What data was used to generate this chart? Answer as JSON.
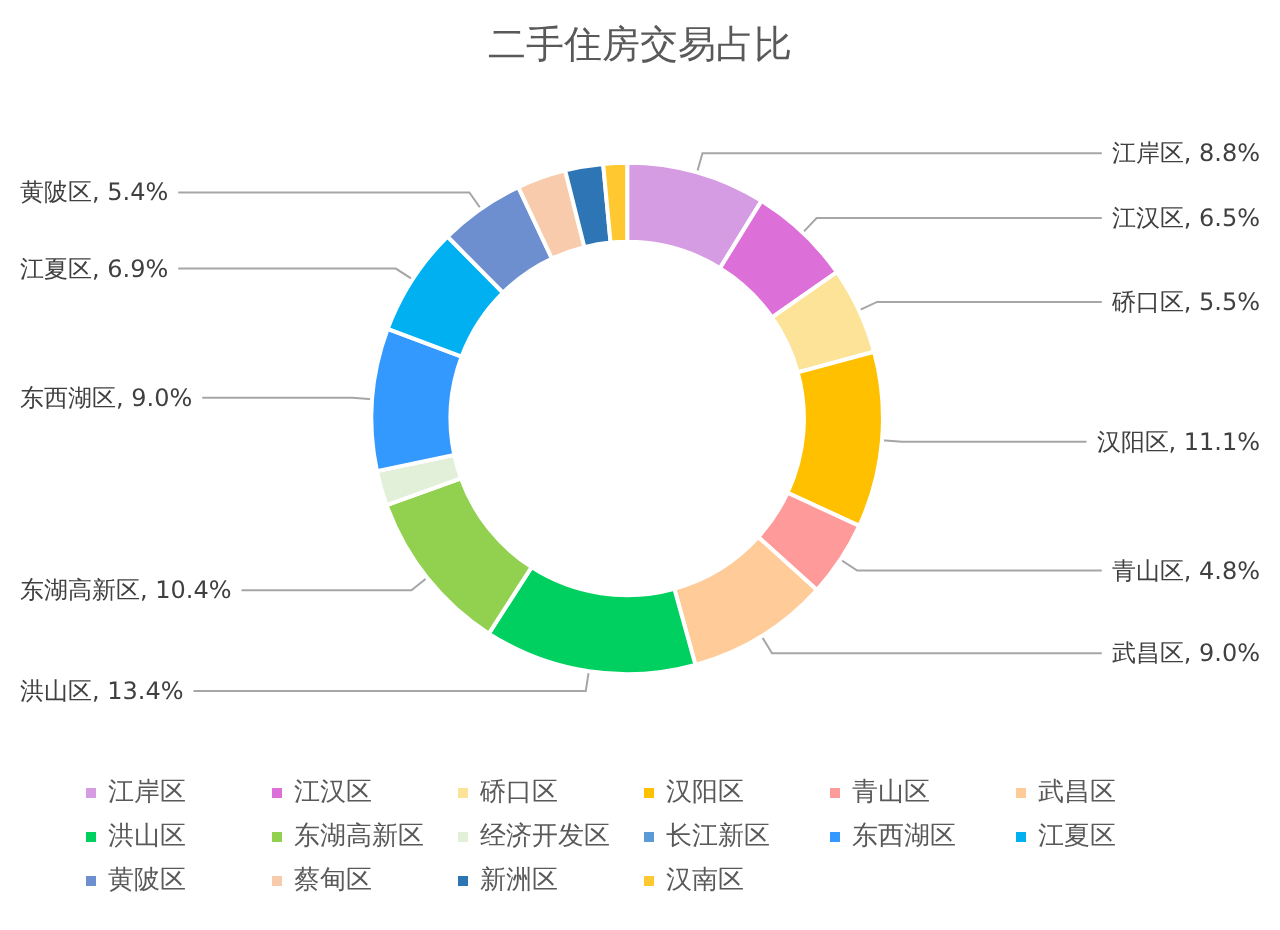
{
  "chart_data": {
    "type": "donut",
    "title": "二手住房交易占比",
    "categories": [
      "江岸区",
      "江汉区",
      "硚口区",
      "汉阳区",
      "青山区",
      "武昌区",
      "洪山区",
      "东湖高新区",
      "经济开发区",
      "长江新区",
      "东西湖区",
      "江夏区",
      "黄陂区",
      "蔡甸区",
      "新洲区",
      "汉南区"
    ],
    "values": [
      8.8,
      6.5,
      5.5,
      11.1,
      4.8,
      9.0,
      13.4,
      10.4,
      2.2,
      0,
      9.0,
      6.9,
      5.4,
      3.1,
      2.4,
      1.5
    ],
    "value_labels": [
      "江岸区, 8.8%",
      "江汉区, 6.5%",
      "硚口区, 5.5%",
      "汉阳区, 11.1%",
      "青山区, 4.8%",
      "武昌区, 9.0%",
      "洪山区, 13.4%",
      "东湖高新区, 10.4%",
      null,
      null,
      "东西湖区, 9.0%",
      "江夏区, 6.9%",
      "黄陂区, 5.4%",
      null,
      null,
      null
    ],
    "colors": [
      "#d59be3",
      "#dd6fd8",
      "#fde397",
      "#ffc000",
      "#ff9a9a",
      "#ffcc99",
      "#00d060",
      "#92d050",
      "#e2efd9",
      "#5b9bd5",
      "#3399ff",
      "#00b0f0",
      "#6d8fd0",
      "#f8cbad",
      "#2e75b6",
      "#ffc830"
    ],
    "legend": "bottom"
  }
}
